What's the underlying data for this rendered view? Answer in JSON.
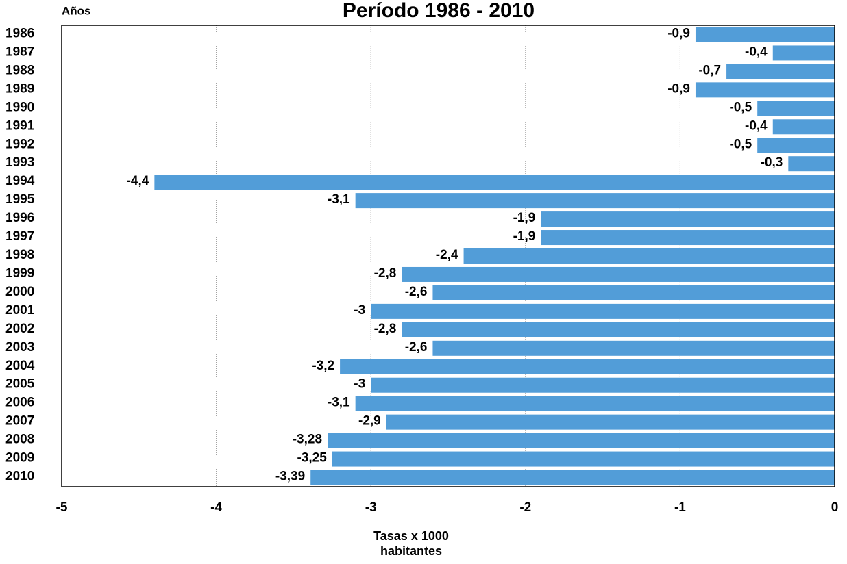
{
  "chart_data": {
    "type": "barh",
    "title": "Período 1986 - 2010",
    "ylabel": "Años",
    "xlabel": [
      "Tasas x 1000",
      "habitantes"
    ],
    "categories": [
      "1986",
      "1987",
      "1988",
      "1989",
      "1990",
      "1991",
      "1992",
      "1993",
      "1994",
      "1995",
      "1996",
      "1997",
      "1998",
      "1999",
      "2000",
      "2001",
      "2002",
      "2003",
      "2004",
      "2005",
      "2006",
      "2007",
      "2008",
      "2009",
      "2010"
    ],
    "values": [
      -0.9,
      -0.4,
      -0.7,
      -0.9,
      -0.5,
      -0.4,
      -0.5,
      -0.3,
      -4.4,
      -3.1,
      -1.9,
      -1.9,
      -2.4,
      -2.8,
      -2.6,
      -3,
      -2.8,
      -2.6,
      -3.2,
      -3,
      -3.1,
      -2.9,
      -3.28,
      -3.25,
      -3.39
    ],
    "value_labels": [
      "-0,9",
      "-0,4",
      "-0,7",
      "-0,9",
      "-0,5",
      "-0,4",
      "-0,5",
      "-0,3",
      "-4,4",
      "-3,1",
      "-1,9",
      "-1,9",
      "-2,4",
      "-2,8",
      "-2,6",
      "-3",
      "-2,8",
      "-2,6",
      "-3,2",
      "-3",
      "-3,1",
      "-2,9",
      "-3,28",
      "-3,25",
      "-3,39"
    ],
    "color": "#529dd8",
    "xlim": [
      -5,
      0
    ],
    "xticks": [
      -5,
      -4,
      -3,
      -2,
      -1,
      0
    ],
    "grid": true
  }
}
